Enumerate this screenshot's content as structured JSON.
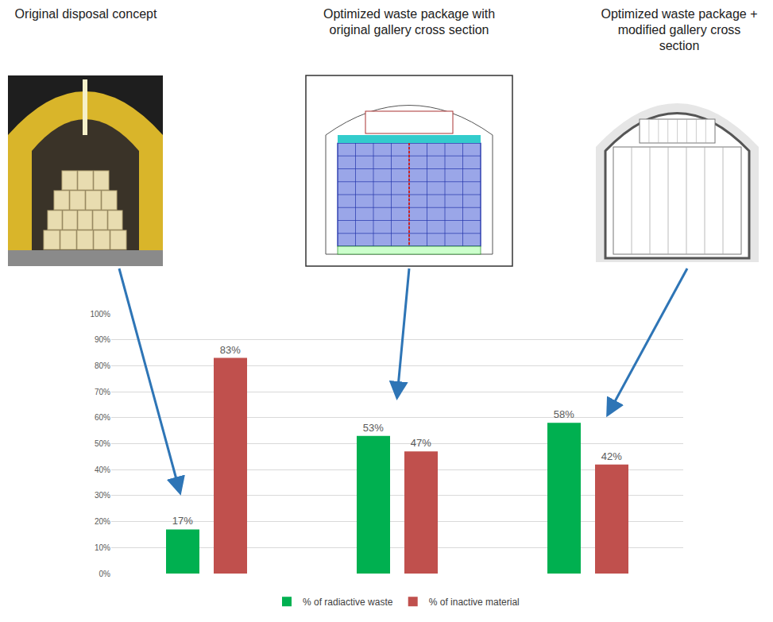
{
  "headings": [
    "Original disposal concept",
    "Optimized waste package with original gallery cross section",
    "Optimized waste package + modified gallery cross section"
  ],
  "chart_data": {
    "type": "bar",
    "categories": [
      null,
      null,
      null
    ],
    "series": [
      {
        "name": "% of radiactive waste",
        "color": "#00b050",
        "values": [
          17,
          53,
          58
        ],
        "value_labels": [
          "17%",
          "53%",
          "58%"
        ]
      },
      {
        "name": "% of inactive material",
        "color": "#c0504d",
        "values": [
          83,
          47,
          42
        ],
        "value_labels": [
          "83%",
          "47%",
          "42%"
        ]
      }
    ],
    "ylim": [
      0,
      100
    ],
    "yticks": [
      {
        "value": 0,
        "label": "0%"
      },
      {
        "value": 10,
        "label": "10%"
      },
      {
        "value": 20,
        "label": "20%"
      },
      {
        "value": 30,
        "label": "30%"
      },
      {
        "value": 40,
        "label": "40%"
      },
      {
        "value": 50,
        "label": "50%"
      },
      {
        "value": 60,
        "label": "60%"
      },
      {
        "value": 70,
        "label": "70%"
      },
      {
        "value": 80,
        "label": "80%"
      },
      {
        "value": 90,
        "label": "90%"
      },
      {
        "value": 100,
        "label": "100%"
      }
    ],
    "grid": true,
    "legend": "bottom",
    "data_labels": true,
    "tick_labels": "y"
  }
}
